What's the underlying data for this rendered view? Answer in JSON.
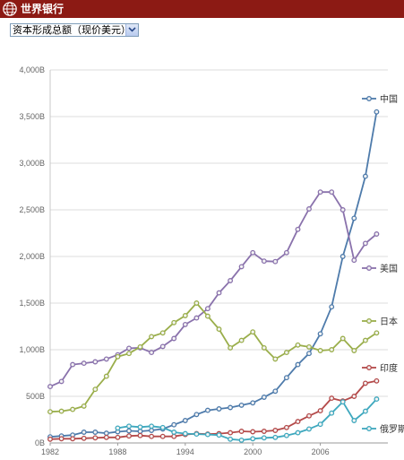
{
  "header": {
    "title": "世界银行"
  },
  "selector": {
    "value": "资本形成总额（现价美元）"
  },
  "colors": {
    "header_bg": "#8c1a14",
    "china": "#4e7bab",
    "usa": "#8a72ac",
    "japan": "#9aae4b",
    "india": "#b44a4a",
    "russia": "#3ea8be",
    "grid": "#dcdcdc"
  },
  "chart_data": {
    "type": "line",
    "x": [
      1982,
      1983,
      1984,
      1985,
      1986,
      1987,
      1988,
      1989,
      1990,
      1991,
      1992,
      1993,
      1994,
      1995,
      1996,
      1997,
      1998,
      1999,
      2000,
      2001,
      2002,
      2003,
      2004,
      2005,
      2006,
      2007,
      2008,
      2009,
      2010,
      2011,
      2012
    ],
    "xticks": [
      "1982",
      "1988",
      "1994",
      "2000",
      "2006"
    ],
    "yticks": [
      "0B",
      "500B",
      "1,000B",
      "1,500B",
      "2,000B",
      "2,500B",
      "3,000B",
      "3,500B",
      "4,000B"
    ],
    "ylim": [
      0,
      4000
    ],
    "xlim": [
      1982,
      2012
    ],
    "unit": "B",
    "series": [
      {
        "name": "中国",
        "color": "#4e7bab",
        "values": [
          65,
          75,
          85,
          115,
          115,
          105,
          120,
          130,
          125,
          135,
          150,
          195,
          240,
          305,
          350,
          365,
          380,
          405,
          430,
          490,
          555,
          700,
          840,
          960,
          1170,
          1460,
          2000,
          2410,
          2860,
          3550,
          null
        ]
      },
      {
        "name": "美国",
        "color": "#8a72ac",
        "values": [
          605,
          660,
          840,
          855,
          870,
          900,
          945,
          1015,
          1020,
          970,
          1035,
          1120,
          1270,
          1340,
          1440,
          1610,
          1740,
          1890,
          2040,
          1950,
          1945,
          2040,
          2290,
          2510,
          2690,
          2690,
          2500,
          1960,
          2140,
          2240,
          null
        ]
      },
      {
        "name": "日本",
        "color": "#9aae4b",
        "values": [
          335,
          340,
          360,
          395,
          575,
          715,
          925,
          960,
          1030,
          1140,
          1180,
          1290,
          1365,
          1500,
          1360,
          1220,
          1020,
          1100,
          1190,
          1020,
          900,
          970,
          1050,
          1030,
          990,
          1000,
          1120,
          990,
          1100,
          1180,
          null
        ]
      },
      {
        "name": "印度",
        "color": "#b44a4a",
        "values": [
          40,
          45,
          45,
          50,
          55,
          60,
          60,
          75,
          80,
          70,
          70,
          70,
          90,
          100,
          95,
          100,
          110,
          125,
          120,
          125,
          135,
          165,
          230,
          290,
          345,
          480,
          450,
          500,
          640,
          665,
          null
        ]
      },
      {
        "name": "俄罗斯",
        "color": "#3ea8be",
        "values": [
          null,
          null,
          null,
          null,
          null,
          null,
          160,
          180,
          170,
          180,
          165,
          115,
          100,
          95,
          90,
          85,
          40,
          30,
          45,
          55,
          60,
          80,
          110,
          150,
          200,
          320,
          440,
          240,
          340,
          470,
          null
        ]
      }
    ]
  }
}
